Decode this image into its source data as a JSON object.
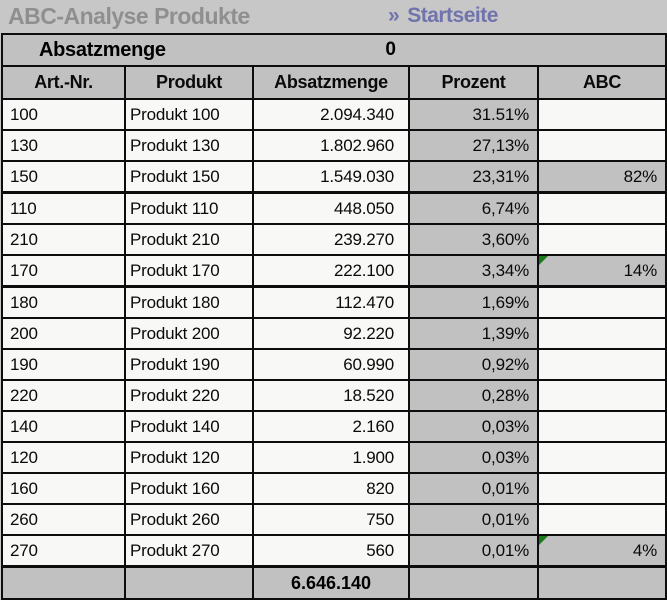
{
  "header": {
    "title": "ABC-Analyse Produkte",
    "link_chevron": "»",
    "link_label": "Startseite"
  },
  "summary": {
    "label": "Absatzmenge",
    "value": "0"
  },
  "table": {
    "columns": [
      "Art.-Nr.",
      "Produkt",
      "Absatzmenge",
      "Prozent",
      "ABC"
    ],
    "rows": [
      {
        "art_nr": "100",
        "produkt": "Produkt 100",
        "absatzmenge": "2.094.340",
        "prozent": "31.51%",
        "abc": "",
        "abc_filled": false,
        "indicator": false,
        "group_end": false
      },
      {
        "art_nr": "130",
        "produkt": "Produkt 130",
        "absatzmenge": "1.802.960",
        "prozent": "27,13%",
        "abc": "",
        "abc_filled": false,
        "indicator": false,
        "group_end": false
      },
      {
        "art_nr": "150",
        "produkt": "Produkt 150",
        "absatzmenge": "1.549.030",
        "prozent": "23,31%",
        "abc": "82%",
        "abc_filled": true,
        "indicator": false,
        "group_end": true
      },
      {
        "art_nr": "110",
        "produkt": "Produkt 110",
        "absatzmenge": "448.050",
        "prozent": "6,74%",
        "abc": "",
        "abc_filled": false,
        "indicator": false,
        "group_end": false
      },
      {
        "art_nr": "210",
        "produkt": "Produkt 210",
        "absatzmenge": "239.270",
        "prozent": "3,60%",
        "abc": "",
        "abc_filled": false,
        "indicator": false,
        "group_end": false
      },
      {
        "art_nr": "170",
        "produkt": "Produkt 170",
        "absatzmenge": "222.100",
        "prozent": "3,34%",
        "abc": "14%",
        "abc_filled": true,
        "indicator": true,
        "group_end": true
      },
      {
        "art_nr": "180",
        "produkt": "Produkt 180",
        "absatzmenge": "112.470",
        "prozent": "1,69%",
        "abc": "",
        "abc_filled": false,
        "indicator": false,
        "group_end": false
      },
      {
        "art_nr": "200",
        "produkt": "Produkt 200",
        "absatzmenge": "92.220",
        "prozent": "1,39%",
        "abc": "",
        "abc_filled": false,
        "indicator": false,
        "group_end": false
      },
      {
        "art_nr": "190",
        "produkt": "Produkt 190",
        "absatzmenge": "60.990",
        "prozent": "0,92%",
        "abc": "",
        "abc_filled": false,
        "indicator": false,
        "group_end": false
      },
      {
        "art_nr": "220",
        "produkt": "Produkt 220",
        "absatzmenge": "18.520",
        "prozent": "0,28%",
        "abc": "",
        "abc_filled": false,
        "indicator": false,
        "group_end": false
      },
      {
        "art_nr": "140",
        "produkt": "Produkt 140",
        "absatzmenge": "2.160",
        "prozent": "0,03%",
        "abc": "",
        "abc_filled": false,
        "indicator": false,
        "group_end": false
      },
      {
        "art_nr": "120",
        "produkt": "Produkt 120",
        "absatzmenge": "1.900",
        "prozent": "0,03%",
        "abc": "",
        "abc_filled": false,
        "indicator": false,
        "group_end": false
      },
      {
        "art_nr": "160",
        "produkt": "Produkt 160",
        "absatzmenge": "820",
        "prozent": "0,01%",
        "abc": "",
        "abc_filled": false,
        "indicator": false,
        "group_end": false
      },
      {
        "art_nr": "260",
        "produkt": "Produkt 260",
        "absatzmenge": "750",
        "prozent": "0,01%",
        "abc": "",
        "abc_filled": false,
        "indicator": false,
        "group_end": false
      },
      {
        "art_nr": "270",
        "produkt": "Produkt 270",
        "absatzmenge": "560",
        "prozent": "0,01%",
        "abc": "4%",
        "abc_filled": true,
        "indicator": true,
        "group_end": true
      }
    ],
    "total": {
      "absatzmenge": "6.646.140"
    }
  },
  "colors": {
    "strip_background": "#c7c7c7",
    "cell_gray": "#c1c1c1",
    "cell_white": "#f8f8f7",
    "border": "#0d0d0d",
    "title_gray": "#8f8f8f",
    "link_blue": "#7173ad",
    "indicator_green": "#1e7a1e"
  }
}
